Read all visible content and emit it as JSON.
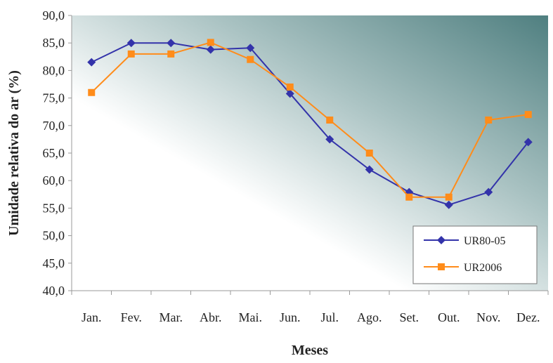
{
  "chart_data": {
    "type": "line",
    "xlabel": "Meses",
    "ylabel": "Umidade relativa do ar (%)",
    "ylim": [
      40,
      90
    ],
    "yticks": [
      "40,0",
      "45,0",
      "50,0",
      "55,0",
      "60,0",
      "65,0",
      "70,0",
      "75,0",
      "80,0",
      "85,0",
      "90,0"
    ],
    "categories": [
      "Jan.",
      "Fev.",
      "Mar.",
      "Abr.",
      "Mai.",
      "Jun.",
      "Jul.",
      "Ago.",
      "Set.",
      "Out.",
      "Nov.",
      "Dez."
    ],
    "series": [
      {
        "name": "UR80-05",
        "color": "#3333aa",
        "marker": "diamond",
        "values": [
          81.5,
          85.0,
          85.0,
          83.8,
          84.1,
          75.8,
          67.5,
          62.0,
          57.9,
          55.6,
          57.9,
          67.0
        ]
      },
      {
        "name": "UR2006",
        "color": "#ff8c1a",
        "marker": "square",
        "values": [
          76.0,
          83.0,
          83.0,
          85.1,
          82.0,
          77.0,
          71.0,
          65.0,
          57.0,
          57.0,
          71.0,
          72.0
        ]
      }
    ],
    "grid": false,
    "legend_position": "bottom-right",
    "plot_background": "gradient white to teal (#5f8c8c) toward top-right"
  }
}
